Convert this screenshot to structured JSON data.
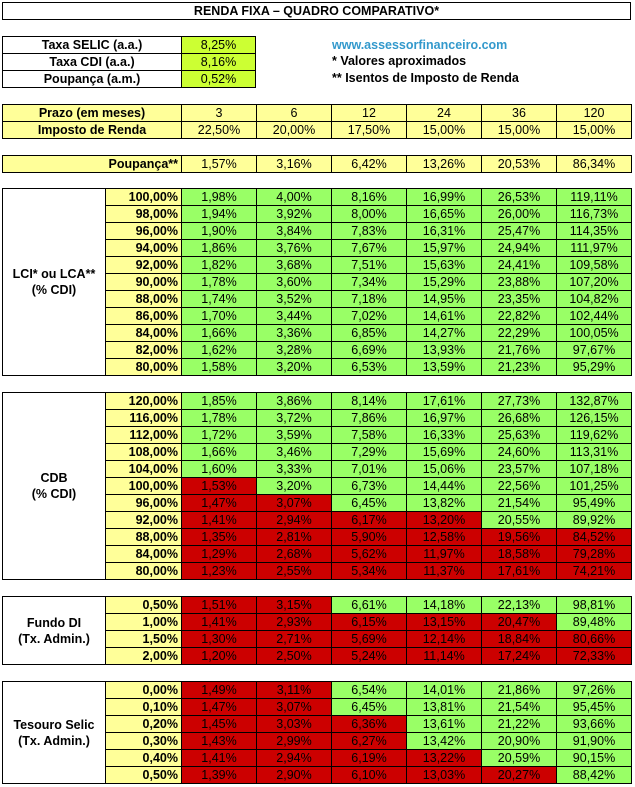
{
  "title": "RENDA FIXA – QUADRO COMPARATIVO*",
  "rates": [
    {
      "label": "Taxa SELIC (a.a.)",
      "value": "8,25%"
    },
    {
      "label": "Taxa CDI (a.a.)",
      "value": "8,16%"
    },
    {
      "label": "Poupança (a.m.)",
      "value": "0,52%"
    }
  ],
  "notes": {
    "site": "www.assessorfinanceiro.com",
    "note1": "* Valores aproximados",
    "note2": "** Isentos de Imposto de Renda"
  },
  "prazo": {
    "label": "Prazo (em meses)",
    "values": [
      "3",
      "6",
      "12",
      "24",
      "36",
      "120"
    ]
  },
  "ir": {
    "label": "Imposto de Renda",
    "values": [
      "22,50%",
      "20,00%",
      "17,50%",
      "15,00%",
      "15,00%",
      "15,00%"
    ]
  },
  "poupanca": {
    "label": "Poupança**",
    "values": [
      "1,57%",
      "3,16%",
      "6,42%",
      "13,26%",
      "20,53%",
      "86,34%"
    ]
  },
  "groups": [
    {
      "label_line1": "LCI* ou LCA**",
      "label_line2": "(% CDI)",
      "rows": [
        {
          "pct": "100,00%",
          "values": [
            "1,98%",
            "4,00%",
            "8,16%",
            "16,99%",
            "26,53%",
            "119,11%"
          ],
          "colors": [
            "g",
            "g",
            "g",
            "g",
            "g",
            "g"
          ]
        },
        {
          "pct": "98,00%",
          "values": [
            "1,94%",
            "3,92%",
            "8,00%",
            "16,65%",
            "26,00%",
            "116,73%"
          ],
          "colors": [
            "g",
            "g",
            "g",
            "g",
            "g",
            "g"
          ]
        },
        {
          "pct": "96,00%",
          "values": [
            "1,90%",
            "3,84%",
            "7,83%",
            "16,31%",
            "25,47%",
            "114,35%"
          ],
          "colors": [
            "g",
            "g",
            "g",
            "g",
            "g",
            "g"
          ]
        },
        {
          "pct": "94,00%",
          "values": [
            "1,86%",
            "3,76%",
            "7,67%",
            "15,97%",
            "24,94%",
            "111,97%"
          ],
          "colors": [
            "g",
            "g",
            "g",
            "g",
            "g",
            "g"
          ]
        },
        {
          "pct": "92,00%",
          "values": [
            "1,82%",
            "3,68%",
            "7,51%",
            "15,63%",
            "24,41%",
            "109,58%"
          ],
          "colors": [
            "g",
            "g",
            "g",
            "g",
            "g",
            "g"
          ]
        },
        {
          "pct": "90,00%",
          "values": [
            "1,78%",
            "3,60%",
            "7,34%",
            "15,29%",
            "23,88%",
            "107,20%"
          ],
          "colors": [
            "g",
            "g",
            "g",
            "g",
            "g",
            "g"
          ]
        },
        {
          "pct": "88,00%",
          "values": [
            "1,74%",
            "3,52%",
            "7,18%",
            "14,95%",
            "23,35%",
            "104,82%"
          ],
          "colors": [
            "g",
            "g",
            "g",
            "g",
            "g",
            "g"
          ]
        },
        {
          "pct": "86,00%",
          "values": [
            "1,70%",
            "3,44%",
            "7,02%",
            "14,61%",
            "22,82%",
            "102,44%"
          ],
          "colors": [
            "g",
            "g",
            "g",
            "g",
            "g",
            "g"
          ]
        },
        {
          "pct": "84,00%",
          "values": [
            "1,66%",
            "3,36%",
            "6,85%",
            "14,27%",
            "22,29%",
            "100,05%"
          ],
          "colors": [
            "g",
            "g",
            "g",
            "g",
            "g",
            "g"
          ]
        },
        {
          "pct": "82,00%",
          "values": [
            "1,62%",
            "3,28%",
            "6,69%",
            "13,93%",
            "21,76%",
            "97,67%"
          ],
          "colors": [
            "g",
            "g",
            "g",
            "g",
            "g",
            "g"
          ]
        },
        {
          "pct": "80,00%",
          "values": [
            "1,58%",
            "3,20%",
            "6,53%",
            "13,59%",
            "21,23%",
            "95,29%"
          ],
          "colors": [
            "g",
            "g",
            "g",
            "g",
            "g",
            "g"
          ]
        }
      ]
    },
    {
      "label_line1": "CDB",
      "label_line2": "(% CDI)",
      "rows": [
        {
          "pct": "120,00%",
          "values": [
            "1,85%",
            "3,86%",
            "8,14%",
            "17,61%",
            "27,73%",
            "132,87%"
          ],
          "colors": [
            "g",
            "g",
            "g",
            "g",
            "g",
            "g"
          ]
        },
        {
          "pct": "116,00%",
          "values": [
            "1,78%",
            "3,72%",
            "7,86%",
            "16,97%",
            "26,68%",
            "126,15%"
          ],
          "colors": [
            "g",
            "g",
            "g",
            "g",
            "g",
            "g"
          ]
        },
        {
          "pct": "112,00%",
          "values": [
            "1,72%",
            "3,59%",
            "7,58%",
            "16,33%",
            "25,63%",
            "119,62%"
          ],
          "colors": [
            "g",
            "g",
            "g",
            "g",
            "g",
            "g"
          ]
        },
        {
          "pct": "108,00%",
          "values": [
            "1,66%",
            "3,46%",
            "7,29%",
            "15,69%",
            "24,60%",
            "113,31%"
          ],
          "colors": [
            "g",
            "g",
            "g",
            "g",
            "g",
            "g"
          ]
        },
        {
          "pct": "104,00%",
          "values": [
            "1,60%",
            "3,33%",
            "7,01%",
            "15,06%",
            "23,57%",
            "107,18%"
          ],
          "colors": [
            "g",
            "g",
            "g",
            "g",
            "g",
            "g"
          ]
        },
        {
          "pct": "100,00%",
          "values": [
            "1,53%",
            "3,20%",
            "6,73%",
            "14,44%",
            "22,56%",
            "101,25%"
          ],
          "colors": [
            "r",
            "g",
            "g",
            "g",
            "g",
            "g"
          ]
        },
        {
          "pct": "96,00%",
          "values": [
            "1,47%",
            "3,07%",
            "6,45%",
            "13,82%",
            "21,54%",
            "95,49%"
          ],
          "colors": [
            "r",
            "r",
            "g",
            "g",
            "g",
            "g"
          ]
        },
        {
          "pct": "92,00%",
          "values": [
            "1,41%",
            "2,94%",
            "6,17%",
            "13,20%",
            "20,55%",
            "89,92%"
          ],
          "colors": [
            "r",
            "r",
            "r",
            "r",
            "g",
            "g"
          ]
        },
        {
          "pct": "88,00%",
          "values": [
            "1,35%",
            "2,81%",
            "5,90%",
            "12,58%",
            "19,56%",
            "84,52%"
          ],
          "colors": [
            "r",
            "r",
            "r",
            "r",
            "r",
            "r"
          ]
        },
        {
          "pct": "84,00%",
          "values": [
            "1,29%",
            "2,68%",
            "5,62%",
            "11,97%",
            "18,58%",
            "79,28%"
          ],
          "colors": [
            "r",
            "r",
            "r",
            "r",
            "r",
            "r"
          ]
        },
        {
          "pct": "80,00%",
          "values": [
            "1,23%",
            "2,55%",
            "5,34%",
            "11,37%",
            "17,61%",
            "74,21%"
          ],
          "colors": [
            "r",
            "r",
            "r",
            "r",
            "r",
            "r"
          ]
        }
      ]
    },
    {
      "label_line1": "Fundo DI",
      "label_line2": "(Tx. Admin.)",
      "rows": [
        {
          "pct": "0,50%",
          "values": [
            "1,51%",
            "3,15%",
            "6,61%",
            "14,18%",
            "22,13%",
            "98,81%"
          ],
          "colors": [
            "r",
            "r",
            "g",
            "g",
            "g",
            "g"
          ]
        },
        {
          "pct": "1,00%",
          "values": [
            "1,41%",
            "2,93%",
            "6,15%",
            "13,15%",
            "20,47%",
            "89,48%"
          ],
          "colors": [
            "r",
            "r",
            "r",
            "r",
            "r",
            "g"
          ]
        },
        {
          "pct": "1,50%",
          "values": [
            "1,30%",
            "2,71%",
            "5,69%",
            "12,14%",
            "18,84%",
            "80,66%"
          ],
          "colors": [
            "r",
            "r",
            "r",
            "r",
            "r",
            "r"
          ]
        },
        {
          "pct": "2,00%",
          "values": [
            "1,20%",
            "2,50%",
            "5,24%",
            "11,14%",
            "17,24%",
            "72,33%"
          ],
          "colors": [
            "r",
            "r",
            "r",
            "r",
            "r",
            "r"
          ]
        }
      ]
    },
    {
      "label_line1": "Tesouro Selic",
      "label_line2": "(Tx. Admin.)",
      "rows": [
        {
          "pct": "0,00%",
          "values": [
            "1,49%",
            "3,11%",
            "6,54%",
            "14,01%",
            "21,86%",
            "97,26%"
          ],
          "colors": [
            "r",
            "r",
            "g",
            "g",
            "g",
            "g"
          ]
        },
        {
          "pct": "0,10%",
          "values": [
            "1,47%",
            "3,07%",
            "6,45%",
            "13,81%",
            "21,54%",
            "95,45%"
          ],
          "colors": [
            "r",
            "r",
            "g",
            "g",
            "g",
            "g"
          ]
        },
        {
          "pct": "0,20%",
          "values": [
            "1,45%",
            "3,03%",
            "6,36%",
            "13,61%",
            "21,22%",
            "93,66%"
          ],
          "colors": [
            "r",
            "r",
            "r",
            "g",
            "g",
            "g"
          ]
        },
        {
          "pct": "0,30%",
          "values": [
            "1,43%",
            "2,99%",
            "6,27%",
            "13,42%",
            "20,90%",
            "91,90%"
          ],
          "colors": [
            "r",
            "r",
            "r",
            "g",
            "g",
            "g"
          ]
        },
        {
          "pct": "0,40%",
          "values": [
            "1,41%",
            "2,94%",
            "6,19%",
            "13,22%",
            "20,59%",
            "90,15%"
          ],
          "colors": [
            "r",
            "r",
            "r",
            "r",
            "g",
            "g"
          ]
        },
        {
          "pct": "0,50%",
          "values": [
            "1,39%",
            "2,90%",
            "6,10%",
            "13,03%",
            "20,27%",
            "88,42%"
          ],
          "colors": [
            "r",
            "r",
            "r",
            "r",
            "r",
            "g"
          ]
        }
      ]
    }
  ]
}
